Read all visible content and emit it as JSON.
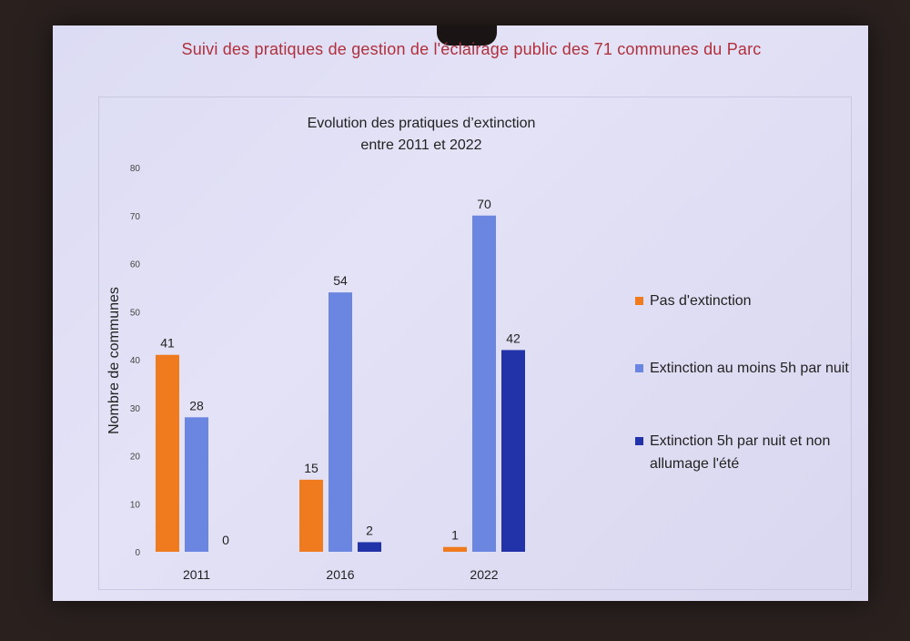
{
  "slide": {
    "title": "Suivi des pratiques de gestion de l'éclairage public des 71 communes du Parc"
  },
  "chart_data": {
    "type": "bar",
    "title": "Evolution des pratiques d’extinction",
    "subtitle": "entre 2011 et 2022",
    "ylabel": "Nombre de communes",
    "xlabel": "",
    "ylim": [
      0,
      80
    ],
    "yticks": [
      0,
      10,
      20,
      30,
      40,
      50,
      60,
      70,
      80
    ],
    "categories": [
      "2011",
      "2016",
      "2022"
    ],
    "series": [
      {
        "name": "Pas d'extinction",
        "color": "#f07a1e",
        "values": [
          41,
          15,
          1
        ]
      },
      {
        "name": "Extinction au moins 5h par nuit",
        "color": "#6b86e0",
        "values": [
          28,
          54,
          70
        ]
      },
      {
        "name": "Extinction 5h par nuit et non allumage l'été",
        "color": "#2233aa",
        "values": [
          0,
          2,
          42
        ]
      }
    ],
    "legend": "right",
    "grid": false
  }
}
